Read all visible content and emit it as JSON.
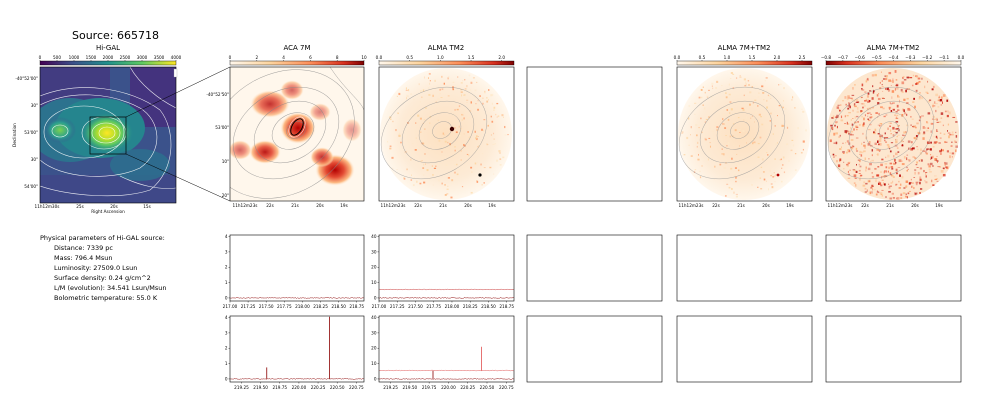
{
  "source_title": "Source: 665718",
  "panel_titles": [
    "Hi-GAL",
    "ACA 7M",
    "ALMA TM2",
    "ALMA 7M+TM2",
    "ALMA 7M+TM2"
  ],
  "info": {
    "heading": "Physical parameters of Hi-GAL source:",
    "lines": [
      "Distance: 7339 pc",
      "Mass: 796.4 Msun",
      "Luminosity: 27509.0 Lsun",
      "Surface density: 0.24 g/cm^2",
      "L/M (evolution): 34.541 Lsun/Msun",
      "Bolometric temperature: 55.0 K"
    ]
  },
  "higal_axes": {
    "ylabel": "Declination",
    "xlabel": "Right Ascension",
    "yticks": [
      "-40°52'00\"",
      "30\"",
      "53'00\"",
      "30\"",
      "54'00\""
    ],
    "xticks": [
      "11h12m30s",
      "25s",
      "20s",
      "15s"
    ]
  },
  "image_axes": {
    "yticks": [
      "-40°52'50\"",
      "53'00\"",
      "10\"",
      "20\""
    ],
    "xticks": [
      "11h12m23s",
      "22s",
      "21s",
      "20s",
      "19s"
    ]
  },
  "chart_data": [
    {
      "type": "heatmap",
      "title": "Hi-GAL",
      "colorbar": {
        "ticks": [
          "0",
          "500",
          "1000",
          "1500",
          "2000",
          "2500",
          "3000",
          "3500",
          "4000"
        ],
        "range": [
          0,
          4000
        ],
        "colormap": "viridis"
      }
    },
    {
      "type": "heatmap",
      "title": "ACA 7M",
      "colorbar": {
        "ticks": [
          "0",
          "2",
          "4",
          "6",
          "8",
          "10"
        ],
        "range": [
          0,
          10
        ],
        "colormap": "OrRd"
      }
    },
    {
      "type": "heatmap",
      "title": "ALMA TM2",
      "colorbar": {
        "ticks": [
          "0.0",
          "0.5",
          "1.0",
          "1.5",
          "2.0"
        ],
        "range": [
          0,
          2.2
        ],
        "colormap": "OrRd"
      }
    },
    {
      "type": "heatmap",
      "title": "ALMA 7M+TM2",
      "colorbar": {
        "ticks": [
          "0.0",
          "0.5",
          "1.0",
          "1.5",
          "2.0",
          "2.5"
        ],
        "range": [
          0,
          2.7
        ],
        "colormap": "OrRd"
      }
    },
    {
      "type": "heatmap",
      "title": "ALMA 7M+TM2",
      "colorbar": {
        "ticks": [
          "−0.8",
          "−0.7",
          "−0.6",
          "−0.5",
          "−0.4",
          "−0.3",
          "−0.2",
          "−0.1",
          "0.0"
        ],
        "range": [
          -0.8,
          0.0
        ],
        "colormap": "OrRd_r"
      }
    },
    {
      "type": "line",
      "panel": "ACA 7M spectrum 1",
      "x_ticks": [
        "217.00",
        "217.25",
        "217.50",
        "217.75",
        "218.00",
        "218.25",
        "218.50",
        "218.75"
      ],
      "y_ticks": [
        "0",
        "1",
        "2",
        "3",
        "4"
      ],
      "xlim": [
        217.0,
        218.85
      ],
      "ylim": [
        -0.2,
        4.1
      ],
      "series": [
        {
          "color": "#8b0000",
          "x": [
            217.0,
            218.85
          ],
          "y": [
            0.0,
            0.0
          ]
        }
      ]
    },
    {
      "type": "line",
      "panel": "ACA 7M spectrum 2",
      "x_ticks": [
        "219.25",
        "219.50",
        "219.75",
        "220.00",
        "220.25",
        "220.50",
        "220.75"
      ],
      "y_ticks": [
        "0",
        "1",
        "2",
        "3",
        "4"
      ],
      "xlim": [
        219.1,
        220.85
      ],
      "ylim": [
        -0.2,
        4.1
      ],
      "series": [
        {
          "color": "#8b0000",
          "lines": [
            {
              "x": 219.58,
              "y": 0.75
            },
            {
              "x": 220.4,
              "y": 4.05
            }
          ]
        }
      ]
    },
    {
      "type": "line",
      "panel": "ALMA TM2 spectrum 1",
      "x_ticks": [
        "217.00",
        "217.25",
        "217.50",
        "217.75",
        "218.00",
        "218.25",
        "218.50",
        "218.75"
      ],
      "y_ticks": [
        "0",
        "10",
        "20",
        "30",
        "40"
      ],
      "xlim": [
        217.0,
        218.85
      ],
      "ylim": [
        -2,
        41
      ],
      "series": [
        {
          "color": "#8b0000",
          "baseline": 0
        },
        {
          "color": "#c83030",
          "baseline": 5.5
        }
      ]
    },
    {
      "type": "line",
      "panel": "ALMA TM2 spectrum 2",
      "x_ticks": [
        "219.25",
        "219.50",
        "219.75",
        "220.00",
        "220.25",
        "220.50",
        "220.75"
      ],
      "y_ticks": [
        "0",
        "10",
        "20",
        "30",
        "40"
      ],
      "xlim": [
        219.1,
        220.85
      ],
      "ylim": [
        -2,
        41
      ],
      "series": [
        {
          "color": "#8b0000",
          "baseline": 0,
          "lines": [
            {
              "x": 219.8,
              "y": 5.5
            }
          ]
        },
        {
          "color": "#e05050",
          "baseline": 5.5,
          "lines": [
            {
              "x": 220.43,
              "y": 21
            }
          ]
        }
      ]
    }
  ]
}
